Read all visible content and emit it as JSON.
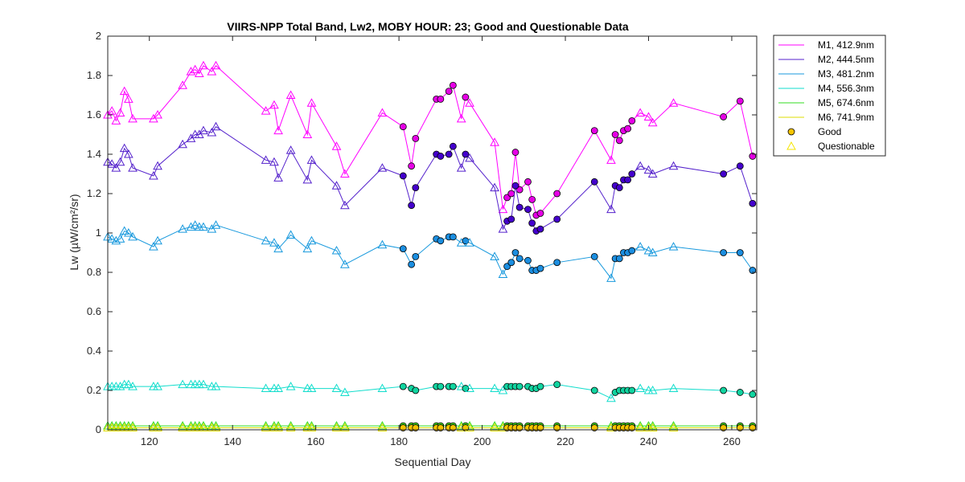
{
  "chart_data": {
    "type": "line",
    "title": "VIIRS-NPP Total Band,  Lw2, MOBY HOUR: 23;  Good and Questionable Data",
    "xlabel": "Sequential Day",
    "ylabel": "Lw (µW/cm²/sr)",
    "xlim": [
      110,
      266
    ],
    "ylim": [
      0,
      2
    ],
    "xticks": [
      120,
      140,
      160,
      180,
      200,
      220,
      240,
      260
    ],
    "yticks": [
      0,
      0.2,
      0.4,
      0.6,
      0.8,
      1,
      1.2,
      1.4,
      1.6,
      1.8,
      2
    ],
    "grid": false,
    "legend_position": "outside-top-right",
    "x": [
      110,
      111,
      112,
      113,
      114,
      115,
      116,
      121,
      122,
      128,
      130,
      131,
      132,
      133,
      135,
      136,
      148,
      150,
      151,
      154,
      158,
      159,
      165,
      167,
      176,
      181,
      183,
      184,
      189,
      190,
      192,
      193,
      195,
      196,
      197,
      203,
      205,
      206,
      207,
      208,
      209,
      211,
      212,
      213,
      214,
      218,
      227,
      231,
      232,
      233,
      234,
      235,
      236,
      238,
      240,
      241,
      246,
      258,
      262,
      265
    ],
    "quality": [
      "Q",
      "Q",
      "Q",
      "Q",
      "Q",
      "Q",
      "Q",
      "Q",
      "Q",
      "Q",
      "Q",
      "Q",
      "Q",
      "Q",
      "Q",
      "Q",
      "Q",
      "Q",
      "Q",
      "Q",
      "Q",
      "Q",
      "Q",
      "Q",
      "Q",
      "G",
      "G",
      "G",
      "G",
      "G",
      "G",
      "G",
      "Q",
      "G",
      "Q",
      "Q",
      "Q",
      "G",
      "G",
      "G",
      "G",
      "G",
      "G",
      "G",
      "G",
      "G",
      "G",
      "Q",
      "G",
      "G",
      "G",
      "G",
      "G",
      "Q",
      "Q",
      "Q",
      "Q",
      "G",
      "G",
      "G"
    ],
    "series": [
      {
        "name": "M1, 412.9nm",
        "color": "#ff00ff",
        "marker_fill": "#e600e6",
        "values": [
          1.6,
          1.62,
          1.57,
          1.61,
          1.72,
          1.68,
          1.58,
          1.58,
          1.6,
          1.75,
          1.82,
          1.83,
          1.81,
          1.85,
          1.82,
          1.85,
          1.62,
          1.65,
          1.52,
          1.7,
          1.5,
          1.66,
          1.44,
          1.3,
          1.61,
          1.54,
          1.34,
          1.48,
          1.68,
          1.68,
          1.72,
          1.75,
          1.58,
          1.69,
          1.66,
          1.46,
          1.12,
          1.18,
          1.2,
          1.41,
          1.22,
          1.26,
          1.17,
          1.09,
          1.1,
          1.2,
          1.52,
          1.37,
          1.5,
          1.47,
          1.52,
          1.53,
          1.57,
          1.61,
          1.59,
          1.56,
          1.66,
          1.59,
          1.67,
          1.39
        ]
      },
      {
        "name": "M2, 444.5nm",
        "color": "#5522cc",
        "marker_fill": "#4400cc",
        "values": [
          1.36,
          1.35,
          1.33,
          1.36,
          1.43,
          1.4,
          1.33,
          1.29,
          1.34,
          1.45,
          1.48,
          1.5,
          1.5,
          1.52,
          1.51,
          1.54,
          1.37,
          1.36,
          1.28,
          1.42,
          1.27,
          1.37,
          1.24,
          1.14,
          1.33,
          1.29,
          1.14,
          1.23,
          1.4,
          1.39,
          1.4,
          1.44,
          1.33,
          1.4,
          1.38,
          1.23,
          1.02,
          1.06,
          1.07,
          1.24,
          1.13,
          1.12,
          1.05,
          1.01,
          1.02,
          1.07,
          1.26,
          1.12,
          1.24,
          1.23,
          1.27,
          1.27,
          1.3,
          1.34,
          1.32,
          1.3,
          1.34,
          1.3,
          1.34,
          1.15
        ]
      },
      {
        "name": "M3, 481.2nm",
        "color": "#1899dd",
        "marker_fill": "#1b8ee0",
        "values": [
          0.98,
          0.97,
          0.96,
          0.97,
          1.01,
          1.0,
          0.98,
          0.93,
          0.96,
          1.02,
          1.03,
          1.04,
          1.03,
          1.03,
          1.02,
          1.04,
          0.96,
          0.95,
          0.92,
          0.99,
          0.92,
          0.96,
          0.91,
          0.84,
          0.94,
          0.92,
          0.84,
          0.88,
          0.97,
          0.96,
          0.98,
          0.98,
          0.95,
          0.96,
          0.95,
          0.88,
          0.79,
          0.83,
          0.85,
          0.9,
          0.87,
          0.86,
          0.81,
          0.81,
          0.82,
          0.85,
          0.88,
          0.77,
          0.87,
          0.87,
          0.9,
          0.9,
          0.91,
          0.93,
          0.91,
          0.9,
          0.93,
          0.9,
          0.9,
          0.81
        ]
      },
      {
        "name": "M4, 556.3nm",
        "color": "#11ddcc",
        "marker_fill": "#11d4a0",
        "values": [
          0.22,
          0.22,
          0.22,
          0.22,
          0.23,
          0.23,
          0.22,
          0.22,
          0.22,
          0.23,
          0.23,
          0.23,
          0.23,
          0.23,
          0.22,
          0.22,
          0.21,
          0.21,
          0.21,
          0.22,
          0.21,
          0.21,
          0.21,
          0.19,
          0.21,
          0.22,
          0.21,
          0.2,
          0.22,
          0.22,
          0.22,
          0.22,
          0.22,
          0.21,
          0.21,
          0.21,
          0.2,
          0.22,
          0.22,
          0.22,
          0.22,
          0.22,
          0.21,
          0.21,
          0.22,
          0.23,
          0.2,
          0.16,
          0.19,
          0.2,
          0.2,
          0.2,
          0.2,
          0.21,
          0.2,
          0.2,
          0.21,
          0.2,
          0.19,
          0.18
        ]
      },
      {
        "name": "M5, 674.6nm",
        "color": "#33dd22",
        "marker_fill": "#44dd22",
        "values": [
          0.02,
          0.02,
          0.02,
          0.02,
          0.02,
          0.02,
          0.02,
          0.02,
          0.02,
          0.02,
          0.02,
          0.02,
          0.02,
          0.02,
          0.02,
          0.02,
          0.02,
          0.02,
          0.02,
          0.02,
          0.02,
          0.02,
          0.02,
          0.02,
          0.02,
          0.02,
          0.02,
          0.02,
          0.02,
          0.02,
          0.02,
          0.02,
          0.02,
          0.02,
          0.02,
          0.02,
          0.02,
          0.02,
          0.02,
          0.02,
          0.02,
          0.02,
          0.02,
          0.02,
          0.02,
          0.02,
          0.02,
          0.02,
          0.02,
          0.02,
          0.02,
          0.02,
          0.02,
          0.02,
          0.02,
          0.02,
          0.02,
          0.02,
          0.02,
          0.02
        ]
      },
      {
        "name": "M6, 741.9nm",
        "color": "#dddd00",
        "marker_fill": "#f5c400",
        "values": [
          0.01,
          0.01,
          0.01,
          0.01,
          0.01,
          0.01,
          0.01,
          0.01,
          0.01,
          0.01,
          0.01,
          0.01,
          0.01,
          0.01,
          0.01,
          0.01,
          0.01,
          0.01,
          0.01,
          0.01,
          0.01,
          0.01,
          0.01,
          0.01,
          0.01,
          0.01,
          0.01,
          0.01,
          0.01,
          0.01,
          0.01,
          0.01,
          0.01,
          0.01,
          0.01,
          0.01,
          0.01,
          0.01,
          0.01,
          0.01,
          0.01,
          0.01,
          0.01,
          0.01,
          0.01,
          0.01,
          0.01,
          0.01,
          0.01,
          0.01,
          0.01,
          0.01,
          0.01,
          0.01,
          0.01,
          0.01,
          0.01,
          0.01,
          0.01,
          0.01
        ]
      }
    ],
    "legend_entries": [
      {
        "label": "M1, 412.9nm",
        "kind": "line",
        "color": "#ff00ff"
      },
      {
        "label": "M2, 444.5nm",
        "kind": "line",
        "color": "#5522cc"
      },
      {
        "label": "M3, 481.2nm",
        "kind": "line",
        "color": "#1899dd"
      },
      {
        "label": "M4, 556.3nm",
        "kind": "line",
        "color": "#11ddcc"
      },
      {
        "label": "M5, 674.6nm",
        "kind": "line",
        "color": "#33dd22"
      },
      {
        "label": "M6, 741.9nm",
        "kind": "line",
        "color": "#dddd00"
      },
      {
        "label": "Good",
        "kind": "circle",
        "color": "#f5c400"
      },
      {
        "label": "Questionable",
        "kind": "triangle",
        "color": "#f5e600"
      }
    ]
  }
}
